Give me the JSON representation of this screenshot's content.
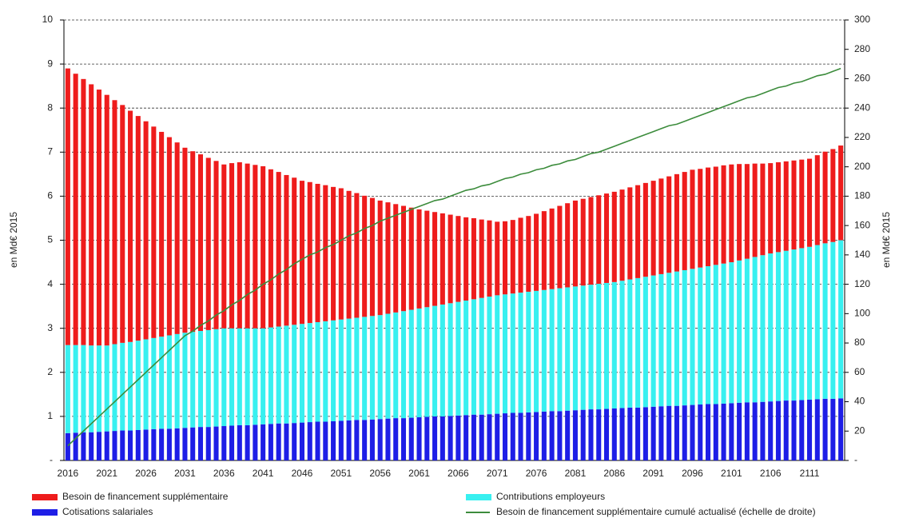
{
  "chart_data": {
    "type": "bar",
    "stacked": true,
    "grid": true,
    "legend": "bottom",
    "y_label": "en Md€ 2015",
    "y2_label": "en Md€ 2015",
    "categories": [
      "2016",
      null,
      null,
      null,
      null,
      "2021",
      null,
      null,
      null,
      null,
      "2026",
      null,
      null,
      null,
      null,
      "2031",
      null,
      null,
      null,
      null,
      "2036",
      null,
      null,
      null,
      null,
      "2041",
      null,
      null,
      null,
      null,
      "2046",
      null,
      null,
      null,
      null,
      "2051",
      null,
      null,
      null,
      null,
      "2056",
      null,
      null,
      null,
      null,
      "2061",
      null,
      null,
      null,
      null,
      "2066",
      null,
      null,
      null,
      null,
      "2071",
      null,
      null,
      null,
      null,
      "2076",
      null,
      null,
      null,
      null,
      "2081",
      null,
      null,
      null,
      null,
      "2086",
      null,
      null,
      null,
      null,
      "2091",
      null,
      null,
      null,
      null,
      "2096",
      null,
      null,
      null,
      null,
      "2101",
      null,
      null,
      null,
      null,
      "2106",
      null,
      null,
      null,
      null,
      "2111",
      null,
      null,
      null,
      null
    ],
    "ylim": [
      0,
      10
    ],
    "yticks": [
      {
        "value": 0,
        "label": "-"
      },
      1,
      2,
      3,
      4,
      5,
      6,
      7,
      8,
      9,
      10
    ],
    "y2lim": [
      0,
      300
    ],
    "y2ticks": [
      {
        "value": 0,
        "label": "-"
      },
      20,
      40,
      60,
      80,
      100,
      120,
      140,
      160,
      180,
      200,
      220,
      240,
      260,
      280,
      300
    ],
    "series": [
      {
        "name": "Cotisations salariales",
        "type": "bar",
        "color": "#1e1ee6",
        "values": [
          0.62,
          0.63,
          0.64,
          0.64,
          0.65,
          0.66,
          0.67,
          0.68,
          0.68,
          0.69,
          0.7,
          0.71,
          0.72,
          0.72,
          0.73,
          0.74,
          0.75,
          0.76,
          0.76,
          0.77,
          0.78,
          0.79,
          0.8,
          0.8,
          0.81,
          0.82,
          0.83,
          0.84,
          0.84,
          0.85,
          0.86,
          0.87,
          0.88,
          0.88,
          0.89,
          0.9,
          0.91,
          0.92,
          0.92,
          0.93,
          0.94,
          0.95,
          0.96,
          0.96,
          0.97,
          0.98,
          0.99,
          1.0,
          1.0,
          1.01,
          1.02,
          1.03,
          1.04,
          1.04,
          1.05,
          1.06,
          1.07,
          1.08,
          1.08,
          1.09,
          1.1,
          1.11,
          1.12,
          1.12,
          1.13,
          1.14,
          1.15,
          1.16,
          1.16,
          1.17,
          1.18,
          1.19,
          1.2,
          1.2,
          1.21,
          1.22,
          1.23,
          1.24,
          1.24,
          1.25,
          1.26,
          1.27,
          1.28,
          1.28,
          1.29,
          1.3,
          1.31,
          1.32,
          1.32,
          1.33,
          1.34,
          1.35,
          1.36,
          1.36,
          1.37,
          1.38,
          1.39,
          1.4,
          1.4,
          1.41
        ]
      },
      {
        "name": "Contributions employeurs",
        "type": "bar",
        "color": "#38f0f0",
        "values": [
          2.0,
          1.99,
          1.98,
          1.97,
          1.96,
          1.95,
          1.97,
          1.99,
          2.01,
          2.03,
          2.05,
          2.07,
          2.09,
          2.12,
          2.14,
          2.16,
          2.17,
          2.18,
          2.2,
          2.21,
          2.22,
          2.21,
          2.2,
          2.2,
          2.19,
          2.18,
          2.19,
          2.2,
          2.22,
          2.23,
          2.24,
          2.25,
          2.26,
          2.28,
          2.29,
          2.3,
          2.31,
          2.32,
          2.34,
          2.35,
          2.36,
          2.38,
          2.4,
          2.43,
          2.45,
          2.47,
          2.49,
          2.51,
          2.54,
          2.56,
          2.58,
          2.6,
          2.62,
          2.65,
          2.67,
          2.69,
          2.7,
          2.71,
          2.73,
          2.74,
          2.75,
          2.76,
          2.77,
          2.79,
          2.8,
          2.81,
          2.82,
          2.83,
          2.85,
          2.86,
          2.87,
          2.89,
          2.91,
          2.94,
          2.96,
          2.98,
          3.0,
          3.02,
          3.05,
          3.07,
          3.09,
          3.11,
          3.13,
          3.16,
          3.18,
          3.2,
          3.23,
          3.26,
          3.3,
          3.33,
          3.36,
          3.38,
          3.4,
          3.43,
          3.45,
          3.47,
          3.5,
          3.53,
          3.56,
          3.59
        ]
      },
      {
        "name": "Besoin de financement supplémentaire",
        "type": "bar",
        "color": "#ee1c1c",
        "values": [
          6.28,
          6.16,
          6.04,
          5.93,
          5.81,
          5.69,
          5.54,
          5.4,
          5.25,
          5.1,
          4.95,
          4.8,
          4.65,
          4.5,
          4.35,
          4.2,
          4.1,
          4.01,
          3.91,
          3.82,
          3.72,
          3.75,
          3.77,
          3.74,
          3.71,
          3.68,
          3.59,
          3.51,
          3.42,
          3.34,
          3.25,
          3.2,
          3.14,
          3.09,
          3.03,
          2.98,
          2.9,
          2.83,
          2.75,
          2.68,
          2.6,
          2.53,
          2.46,
          2.39,
          2.32,
          2.25,
          2.19,
          2.13,
          2.07,
          2.01,
          1.95,
          1.89,
          1.84,
          1.78,
          1.73,
          1.67,
          1.66,
          1.67,
          1.7,
          1.72,
          1.75,
          1.79,
          1.83,
          1.87,
          1.91,
          1.95,
          1.97,
          1.99,
          2.01,
          2.03,
          2.05,
          2.07,
          2.09,
          2.11,
          2.13,
          2.15,
          2.17,
          2.19,
          2.21,
          2.23,
          2.25,
          2.24,
          2.24,
          2.23,
          2.23,
          2.22,
          2.19,
          2.15,
          2.12,
          2.08,
          2.05,
          2.04,
          2.03,
          2.02,
          2.01,
          2.0,
          2.04,
          2.08,
          2.11,
          2.15
        ]
      },
      {
        "name": "Besoin de financement supplémentaire cumulé actualisé (échelle de droite)",
        "type": "line",
        "axis": "y2",
        "color": "#3c8c3c",
        "values": [
          10,
          15,
          20,
          25,
          30,
          35,
          40,
          45,
          50,
          55,
          60,
          65,
          70,
          75,
          80,
          85,
          88,
          92,
          95,
          99,
          102,
          106,
          109,
          113,
          116,
          120,
          123,
          127,
          130,
          134,
          137,
          140,
          142,
          145,
          147,
          150,
          153,
          155,
          158,
          160,
          163,
          165,
          167,
          169,
          171,
          173,
          175,
          177,
          178,
          180,
          182,
          184,
          185,
          187,
          188,
          190,
          192,
          193,
          195,
          196,
          198,
          199,
          201,
          202,
          204,
          205,
          207,
          209,
          210,
          212,
          214,
          216,
          218,
          220,
          222,
          224,
          226,
          228,
          229,
          231,
          233,
          235,
          237,
          239,
          241,
          243,
          245,
          247,
          248,
          250,
          252,
          254,
          255,
          257,
          258,
          260,
          262,
          263,
          265,
          267
        ]
      }
    ]
  }
}
